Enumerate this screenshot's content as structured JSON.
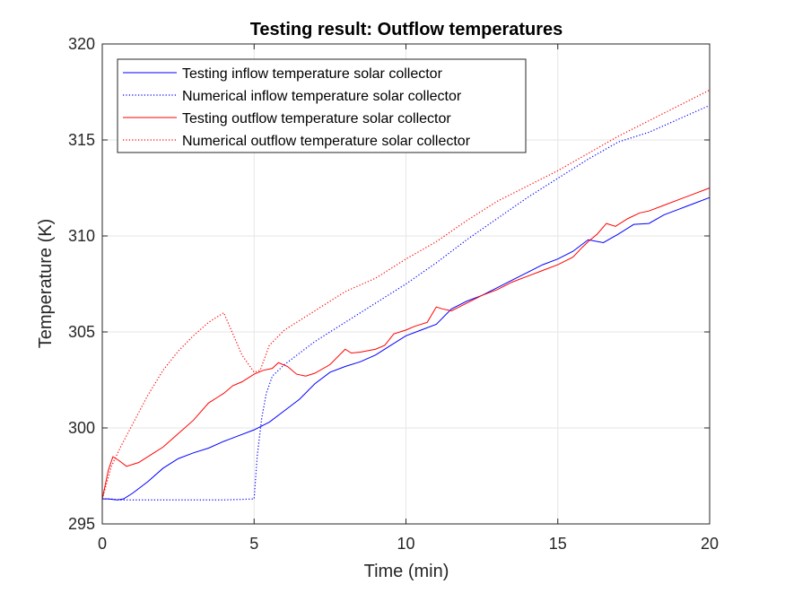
{
  "chart_data": {
    "type": "line",
    "title": "Testing result: Outflow temperatures",
    "xlabel": "Time (min)",
    "ylabel": "Temperature (K)",
    "xlim": [
      0,
      20
    ],
    "ylim": [
      295,
      320
    ],
    "xticks": [
      0,
      5,
      10,
      15,
      20
    ],
    "yticks": [
      295,
      300,
      305,
      310,
      315,
      320
    ],
    "grid": true,
    "legend_position": "top-left",
    "series": [
      {
        "name": "Testing inflow temperature solar collector",
        "color": "#0000ff",
        "style": "solid",
        "x": [
          0,
          0.2,
          0.5,
          0.7,
          1.0,
          1.5,
          2.0,
          2.5,
          3.0,
          3.5,
          4.0,
          4.5,
          5.0,
          5.5,
          6.0,
          6.5,
          7.0,
          7.5,
          8.0,
          8.5,
          9.0,
          9.5,
          10.0,
          10.5,
          11.0,
          11.5,
          12.0,
          12.5,
          13.0,
          13.5,
          14.0,
          14.5,
          15.0,
          15.5,
          16.0,
          16.5,
          17.0,
          17.5,
          18.0,
          18.5,
          19.0,
          19.5,
          20.0
        ],
        "y": [
          296.3,
          296.3,
          296.25,
          296.3,
          296.6,
          297.2,
          297.9,
          298.4,
          298.7,
          298.95,
          299.3,
          299.6,
          299.9,
          300.3,
          300.9,
          301.5,
          302.3,
          302.9,
          303.2,
          303.45,
          303.8,
          304.3,
          304.8,
          305.1,
          305.4,
          306.2,
          306.6,
          306.9,
          307.3,
          307.7,
          308.1,
          308.5,
          308.8,
          309.2,
          309.8,
          309.65,
          310.1,
          310.6,
          310.65,
          311.1,
          311.4,
          311.7,
          312.0
        ]
      },
      {
        "name": "Numerical inflow temperature solar collector",
        "color": "#0000ff",
        "style": "dotted",
        "x": [
          0,
          0.3,
          0.6,
          1.0,
          2.0,
          3.0,
          4.0,
          5.0,
          5.1,
          5.25,
          5.4,
          5.6,
          6.0,
          7.0,
          8.0,
          9.0,
          10.0,
          11.0,
          12.0,
          13.0,
          14.0,
          15.0,
          16.0,
          17.0,
          18.0,
          19.0,
          20.0
        ],
        "y": [
          296.3,
          296.3,
          296.25,
          296.25,
          296.25,
          296.25,
          296.25,
          296.3,
          298.5,
          300.5,
          301.8,
          302.7,
          303.3,
          304.5,
          305.5,
          306.5,
          307.5,
          308.6,
          309.8,
          310.9,
          312.0,
          313.0,
          314.0,
          314.9,
          315.4,
          316.1,
          316.8
        ]
      },
      {
        "name": "Testing outflow temperature solar collector",
        "color": "#ff0000",
        "style": "solid",
        "x": [
          0,
          0.2,
          0.35,
          0.55,
          0.8,
          1.2,
          1.6,
          2.0,
          2.5,
          3.0,
          3.5,
          3.8,
          4.0,
          4.3,
          4.6,
          5.0,
          5.3,
          5.6,
          5.8,
          6.1,
          6.4,
          6.7,
          7.0,
          7.5,
          8.0,
          8.2,
          8.5,
          9.0,
          9.3,
          9.6,
          10.0,
          10.3,
          10.7,
          11.0,
          11.2,
          11.5,
          12.0,
          12.5,
          13.0,
          13.5,
          14.0,
          14.5,
          15.0,
          15.5,
          15.8,
          16.0,
          16.3,
          16.6,
          16.9,
          17.3,
          17.7,
          18.0,
          18.5,
          19.0,
          19.5,
          20.0
        ],
        "y": [
          296.3,
          297.8,
          298.5,
          298.3,
          298.0,
          298.2,
          298.6,
          299.0,
          299.7,
          300.4,
          301.3,
          301.6,
          301.8,
          302.2,
          302.4,
          302.8,
          303.0,
          303.1,
          303.4,
          303.2,
          302.8,
          302.7,
          302.85,
          303.3,
          304.1,
          303.9,
          303.95,
          304.1,
          304.3,
          304.9,
          305.1,
          305.3,
          305.5,
          306.3,
          306.2,
          306.1,
          306.5,
          306.9,
          307.2,
          307.6,
          307.9,
          308.2,
          308.5,
          308.9,
          309.4,
          309.7,
          310.1,
          310.65,
          310.5,
          310.9,
          311.2,
          311.3,
          311.6,
          311.9,
          312.2,
          312.5
        ]
      },
      {
        "name": "Numerical outflow temperature solar collector",
        "color": "#ff0000",
        "style": "dotted",
        "x": [
          0,
          0.3,
          0.6,
          1.0,
          1.5,
          2.0,
          2.5,
          3.0,
          3.5,
          4.0,
          4.3,
          4.6,
          5.0,
          5.2,
          5.5,
          6.0,
          7.0,
          8.0,
          9.0,
          10.0,
          11.0,
          12.0,
          13.0,
          14.0,
          15.0,
          16.0,
          17.0,
          18.0,
          19.0,
          20.0
        ],
        "y": [
          296.3,
          298.0,
          299.0,
          300.2,
          301.7,
          303.0,
          304.0,
          304.8,
          305.5,
          306.0,
          304.9,
          303.8,
          302.9,
          303.0,
          304.3,
          305.1,
          306.1,
          307.1,
          307.8,
          308.8,
          309.7,
          310.8,
          311.8,
          312.6,
          313.4,
          314.3,
          315.2,
          316.0,
          316.8,
          317.6
        ]
      }
    ]
  }
}
